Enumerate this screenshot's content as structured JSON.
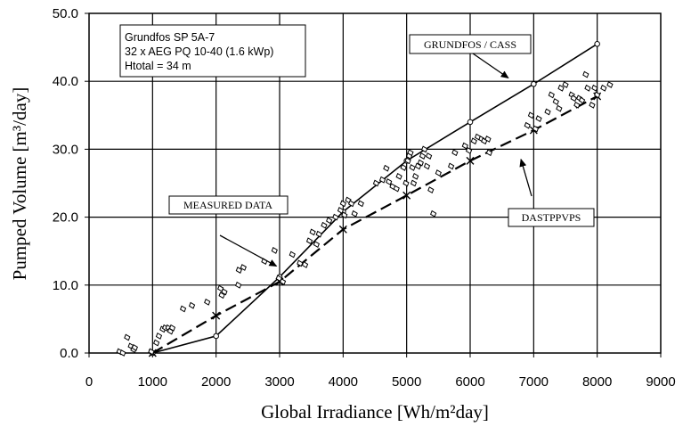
{
  "chart_data": {
    "type": "scatter",
    "xlabel": "Global Irradiance [Wh/m²day]",
    "ylabel": "Pumped Volume [m³/day]",
    "xlim": [
      0,
      9000
    ],
    "ylim": [
      0,
      50
    ],
    "x_ticks": [
      0,
      1000,
      2000,
      3000,
      4000,
      5000,
      6000,
      7000,
      8000,
      9000
    ],
    "y_ticks": [
      0,
      10,
      20,
      30,
      40,
      50
    ],
    "x_tick_labels": [
      "0",
      "1000",
      "2000",
      "3000",
      "4000",
      "5000",
      "6000",
      "7000",
      "8000",
      "9000"
    ],
    "y_tick_labels": [
      "0.0",
      "10.0",
      "20.0",
      "30.0",
      "40.0",
      "50.0"
    ],
    "grid": true,
    "info_box": [
      "Grundfos SP 5A-7",
      "32 x AEG PQ 10-40 (1.6 kWp)",
      "Htotal = 34 m"
    ],
    "series": [
      {
        "name": "MEASURED DATA",
        "style": "points",
        "marker": "diamond",
        "color": "#000000",
        "x": [
          480,
          530,
          600,
          660,
          700,
          720,
          980,
          1060,
          1100,
          1160,
          1200,
          1250,
          1280,
          1310,
          1480,
          1620,
          1860,
          2070,
          2090,
          2130,
          2350,
          2360,
          2430,
          2760,
          2920,
          2990,
          3050,
          3200,
          3320,
          3400,
          3470,
          3520,
          3580,
          3620,
          3700,
          3780,
          3880,
          3960,
          4000,
          4020,
          4080,
          4130,
          4180,
          4280,
          4520,
          4620,
          4680,
          4720,
          4780,
          4840,
          4880,
          4950,
          4990,
          5020,
          5040,
          5060,
          5090,
          5110,
          5140,
          5180,
          5220,
          5250,
          5280,
          5320,
          5350,
          5380,
          5420,
          5500,
          5700,
          5760,
          5920,
          5980,
          6060,
          6120,
          6180,
          6220,
          6280,
          6300,
          6900,
          6960,
          7030,
          7080,
          7220,
          7280,
          7350,
          7400,
          7430,
          7500,
          7600,
          7630,
          7680,
          7720,
          7760,
          7820,
          7850,
          7920,
          7960,
          8000,
          8100,
          8200
        ],
        "y": [
          0.2,
          0.0,
          2.3,
          1.0,
          0.5,
          0.8,
          0.2,
          1.5,
          2.5,
          3.5,
          3.7,
          3.7,
          3.2,
          3.7,
          6.5,
          7.0,
          7.5,
          9.5,
          8.5,
          9.0,
          10.0,
          12.2,
          12.6,
          13.5,
          15.1,
          11.0,
          10.5,
          14.5,
          13.2,
          13.0,
          16.5,
          17.8,
          16.0,
          17.5,
          18.8,
          19.5,
          20.0,
          21.0,
          22.0,
          20.3,
          22.5,
          22.0,
          20.5,
          22.0,
          25.0,
          25.5,
          27.2,
          25.2,
          24.5,
          24.2,
          26.0,
          27.3,
          25.0,
          28.3,
          29.0,
          29.5,
          27.3,
          25.0,
          26.0,
          27.5,
          28.0,
          29.0,
          30.0,
          27.5,
          29.0,
          24.0,
          20.5,
          26.5,
          27.5,
          29.5,
          30.5,
          29.8,
          31.2,
          31.8,
          31.5,
          31.2,
          31.5,
          29.5,
          33.5,
          35.0,
          33.0,
          34.5,
          35.5,
          38.0,
          37.0,
          36.0,
          39.0,
          39.5,
          38.0,
          37.5,
          36.5,
          37.5,
          37.2,
          41.0,
          39.0,
          36.5,
          39.0,
          38.0,
          39.0,
          39.5
        ]
      },
      {
        "name": "GRUNDFOS / CASS",
        "style": "solid-line",
        "marker": "circle",
        "color": "#000000",
        "x": [
          1000,
          2000,
          3000,
          4000,
          5000,
          6000,
          7000,
          8000
        ],
        "y": [
          0.0,
          2.5,
          11.2,
          20.8,
          28.3,
          34.0,
          39.6,
          45.5
        ]
      },
      {
        "name": "DASTPPVPS",
        "style": "dashed-line",
        "marker": "x",
        "color": "#000000",
        "x": [
          1000,
          2000,
          3000,
          4000,
          5000,
          6000,
          7000,
          8000
        ],
        "y": [
          0.0,
          5.5,
          10.5,
          18.2,
          23.2,
          28.3,
          32.8,
          37.8
        ]
      }
    ],
    "annotations": [
      {
        "text": "GRUNDFOS / CASS",
        "points_to": [
          6600,
          40.5
        ]
      },
      {
        "text": "MEASURED DATA",
        "points_to": [
          2950,
          12.8
        ]
      },
      {
        "text": "DASTPPVPS",
        "points_to": [
          6800,
          28.5
        ]
      }
    ]
  }
}
